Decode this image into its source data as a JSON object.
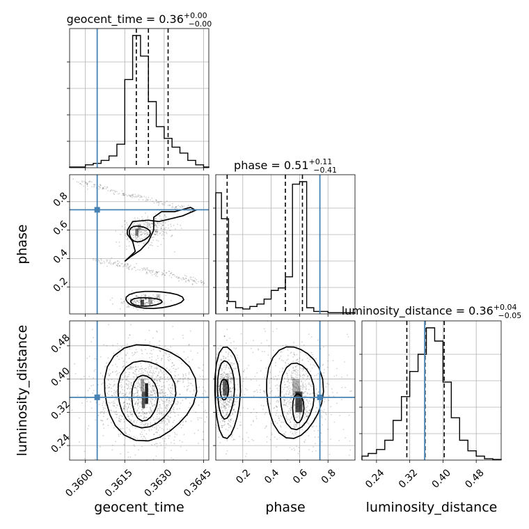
{
  "chart_data": {
    "type": "corner",
    "parameters": [
      "geocent_time",
      "phase",
      "luminosity_distance"
    ],
    "titles": [
      {
        "param": "geocent_time",
        "prefix": "geocent_time = 0.36",
        "plus": "+0.00",
        "minus": "−0.00"
      },
      {
        "param": "phase",
        "prefix": "phase = 0.51",
        "plus": "+0.11",
        "minus": "−0.41"
      },
      {
        "param": "luminosity_distance",
        "prefix": "luminosity_distance = 0.36",
        "plus": "+0.04",
        "minus": "−0.05"
      }
    ],
    "ranges": {
      "geocent_time": [
        0.3594,
        0.3647
      ],
      "phase": [
        0.01,
        0.99
      ],
      "luminosity_distance": [
        0.205,
        0.54
      ]
    },
    "ticks": {
      "geocent_time": [
        "0.3600",
        "0.3615",
        "0.3630",
        "0.3645"
      ],
      "phase_x": [
        "0.2",
        "0.4",
        "0.6",
        "0.8"
      ],
      "phase_y": [
        "0.2",
        "0.4",
        "0.6",
        "0.8"
      ],
      "luminosity_distance": [
        "0.24",
        "0.32",
        "0.40",
        "0.48"
      ]
    },
    "truths": {
      "geocent_time": 0.36045,
      "phase": 0.743,
      "luminosity_distance": 0.356
    },
    "quantiles": {
      "geocent_time": [
        0.36194,
        0.3624,
        0.36315
      ],
      "phase": [
        0.09,
        0.5,
        0.62
      ],
      "luminosity_distance": [
        0.313,
        0.357,
        0.403
      ]
    },
    "histograms": {
      "geocent_time": {
        "edges": [
          0.3594,
          0.36,
          0.3603,
          0.3606,
          0.3609,
          0.3612,
          0.3615,
          0.3618,
          0.3621,
          0.3624,
          0.3627,
          0.363,
          0.3633,
          0.3636,
          0.3639,
          0.3642,
          0.3645,
          0.3647
        ],
        "counts": [
          0.005,
          0.02,
          0.03,
          0.05,
          0.08,
          0.16,
          0.6,
          0.9,
          0.76,
          0.45,
          0.28,
          0.2,
          0.14,
          0.1,
          0.05,
          0.02,
          0.005
        ]
      },
      "phase": {
        "edges": [
          0.01,
          0.05,
          0.1,
          0.15,
          0.2,
          0.25,
          0.3,
          0.35,
          0.4,
          0.45,
          0.5,
          0.55,
          0.6,
          0.65,
          0.7,
          0.75,
          0.8,
          0.85,
          0.9,
          0.95,
          0.99
        ],
        "counts": [
          0.98,
          0.77,
          0.1,
          0.05,
          0.04,
          0.06,
          0.08,
          0.12,
          0.19,
          0.21,
          0.3,
          1.05,
          1.07,
          0.05,
          0.02,
          0.02,
          0.01,
          0.01,
          0.01,
          0.01
        ]
      },
      "luminosity_distance": {
        "edges": [
          0.205,
          0.22,
          0.24,
          0.26,
          0.28,
          0.3,
          0.32,
          0.34,
          0.36,
          0.38,
          0.4,
          0.42,
          0.44,
          0.46,
          0.48,
          0.5,
          0.52,
          0.54
        ],
        "counts": [
          0.03,
          0.05,
          0.08,
          0.15,
          0.3,
          0.48,
          0.67,
          0.8,
          1.0,
          0.9,
          0.59,
          0.32,
          0.15,
          0.07,
          0.03,
          0.01,
          0.005
        ]
      }
    },
    "xlabels": [
      "geocent_time",
      "phase",
      "luminosity_distance"
    ],
    "ylabels": [
      "phase",
      "luminosity_distance"
    ],
    "grid": true,
    "truth_color": "#4682b4",
    "line_color": "#000000"
  }
}
